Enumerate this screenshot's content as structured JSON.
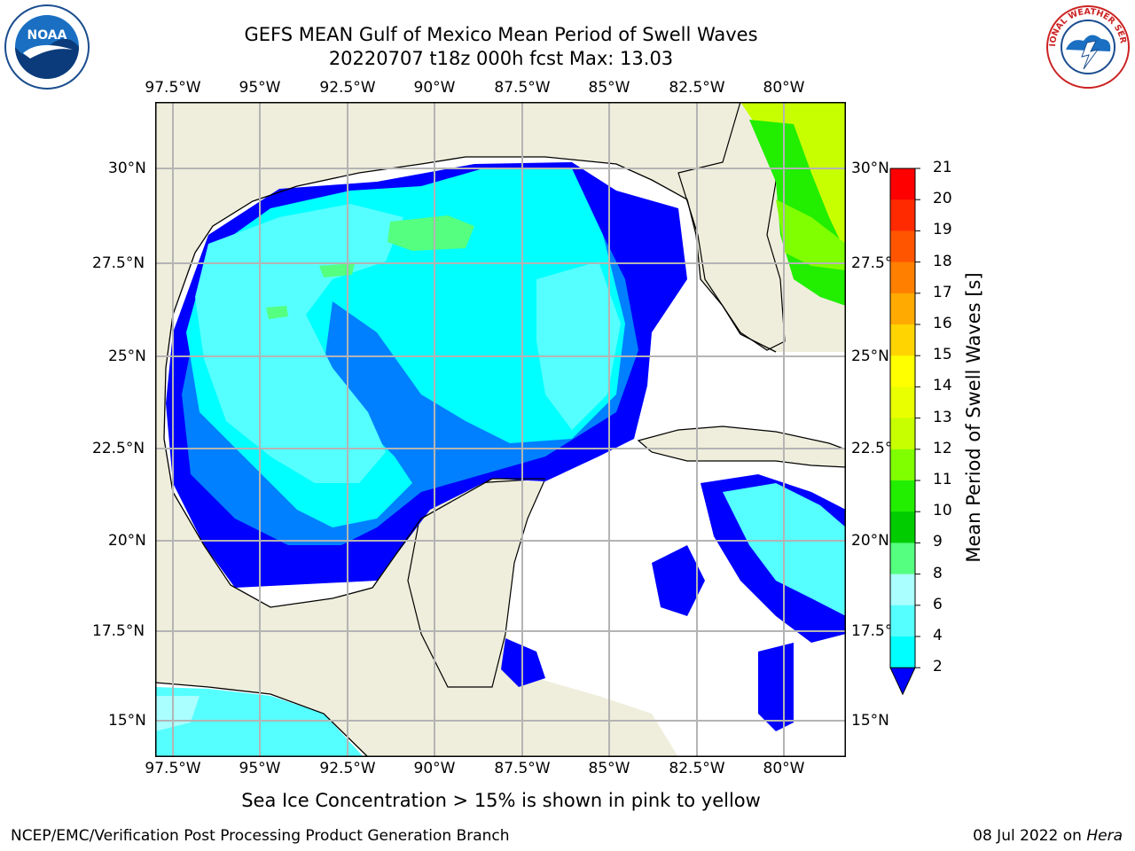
{
  "title": {
    "line1": "GEFS MEAN Gulf of Mexico Mean Period of Swell Waves",
    "line2": "20220707 t18z 000h fcst   Max: 13.03"
  },
  "lon_labels": [
    "97.5°W",
    "95°W",
    "92.5°W",
    "90°W",
    "87.5°W",
    "85°W",
    "82.5°W",
    "80°W"
  ],
  "lat_labels": [
    "30°N",
    "27.5°N",
    "25°N",
    "22.5°N",
    "20°N",
    "17.5°N",
    "15°N"
  ],
  "colorbar": {
    "title": "Mean Period of Swell Waves [s]",
    "ticks": [
      "21",
      "20",
      "19",
      "18",
      "17",
      "16",
      "15",
      "14",
      "13",
      "12",
      "11",
      "10",
      "9",
      "8",
      "6",
      "4",
      "2"
    ],
    "colors": [
      "#ff0000",
      "#ff2a00",
      "#ff5500",
      "#ff7f00",
      "#ffaa00",
      "#ffd400",
      "#ffff00",
      "#e9ff00",
      "#c8ff00",
      "#7fff00",
      "#22ee00",
      "#00cc00",
      "#55ff7f",
      "#aaffff",
      "#55ffff",
      "#00ffff",
      "#0080ff",
      "#0000ff"
    ]
  },
  "map_colors": {
    "land": "#efeedc",
    "water": "#ffffff",
    "grid": "#b4b4b4"
  },
  "note": "Sea Ice Concentration > 15% is shown in pink to yellow",
  "footer": {
    "left": "NCEP/EMC/Verification Post Processing Product Generation Branch",
    "date": "08 Jul 2022 on ",
    "machine": "Hera"
  },
  "logos": {
    "noaa_text": "NOAA",
    "nws_text": "NATIONAL WEATHER SERVICE"
  }
}
